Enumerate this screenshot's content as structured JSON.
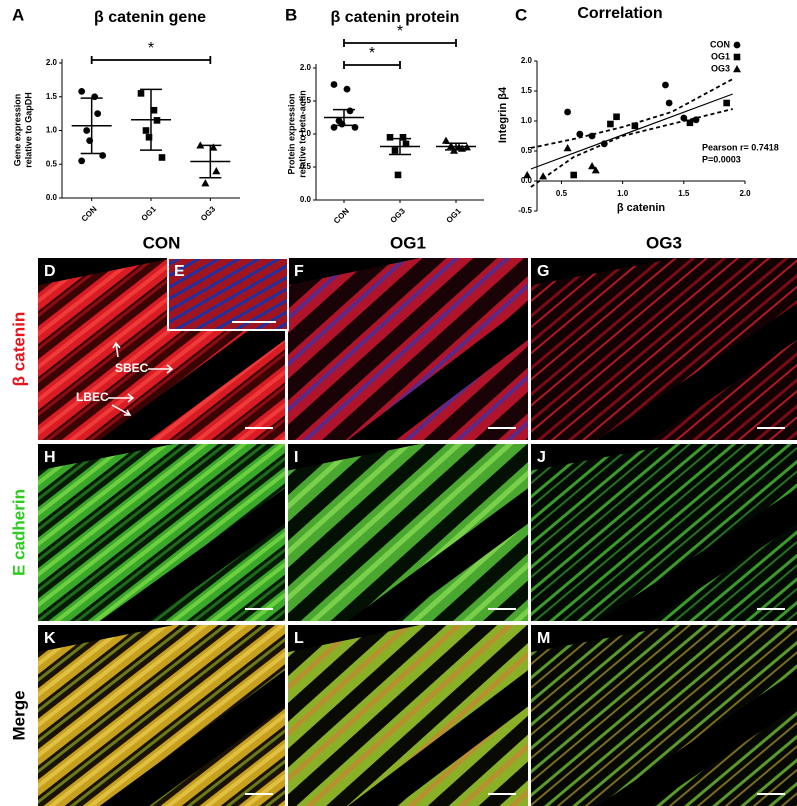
{
  "chart_data": [
    {
      "type": "dot_plot",
      "panel": "A",
      "title": "β catenin gene",
      "y_label": [
        "Gene expression",
        "relative to GapDH"
      ],
      "categories": [
        "CON",
        "OG1",
        "OG3"
      ],
      "markers": [
        "circle",
        "square",
        "triangle"
      ],
      "color": "#000000",
      "points": [
        [
          1.58,
          1.5,
          1.25,
          1.0,
          0.85,
          0.63,
          0.55
        ],
        [
          1.55,
          1.3,
          1.15,
          1.0,
          0.9,
          0.6
        ],
        [
          0.78,
          0.75,
          0.4,
          0.22
        ]
      ],
      "means": [
        1.07,
        1.16,
        0.54
      ],
      "errors": [
        0.41,
        0.45,
        0.24
      ],
      "ylim": [
        0,
        2
      ],
      "yticks": [
        {
          "value": 0,
          "label": "0.0"
        },
        0.5,
        {
          "value": 1,
          "label": "1.0"
        },
        1.5,
        {
          "value": 2,
          "label": "2.0"
        }
      ],
      "significance": [
        {
          "label": "*",
          "groups": [
            0,
            2
          ]
        }
      ]
    },
    {
      "type": "dot_plot",
      "panel": "B",
      "title": "β catenin protein",
      "y_label": [
        "Protein expression",
        "relative to beta-actin"
      ],
      "categories": [
        "CON",
        "OG3",
        "OG1"
      ],
      "markers": [
        "circle",
        "square",
        "triangle"
      ],
      "color": "#000000",
      "points": [
        [
          1.75,
          1.68,
          1.35,
          1.2,
          1.15,
          1.1,
          1.1
        ],
        [
          0.95,
          0.95,
          0.85,
          0.75,
          0.38
        ],
        [
          0.9,
          0.8,
          0.78,
          0.82,
          0.75,
          0.8
        ]
      ],
      "means": [
        1.25,
        0.81,
        0.81
      ],
      "errors": [
        0.12,
        0.12,
        0.05
      ],
      "ylim": [
        0,
        2
      ],
      "yticks": [
        {
          "value": 0,
          "label": "0.0"
        },
        0.5,
        {
          "value": 1,
          "label": "1.0"
        },
        1.5,
        {
          "value": 2,
          "label": "2.0"
        }
      ],
      "significance": [
        {
          "label": "*",
          "groups": [
            0,
            1
          ]
        },
        {
          "label": "*",
          "groups": [
            0,
            2
          ]
        }
      ]
    },
    {
      "type": "scatter",
      "panel": "C",
      "title": "Correlation",
      "x_label": "β catenin",
      "y_label": "Integrin β4",
      "series": [
        {
          "name": "CON",
          "marker": "circle",
          "color": "#000000",
          "x": [
            0.55,
            0.65,
            0.75,
            0.85,
            1.35,
            1.38,
            1.5,
            1.6
          ],
          "values": [
            1.15,
            0.78,
            0.75,
            0.62,
            1.6,
            1.3,
            1.05,
            1.02
          ]
        },
        {
          "name": "OG1",
          "marker": "square",
          "color": "#000000",
          "x": [
            0.6,
            0.9,
            0.95,
            1.1,
            1.55,
            1.85
          ],
          "values": [
            0.1,
            0.95,
            1.07,
            0.92,
            0.97,
            1.3
          ]
        },
        {
          "name": "OG3",
          "marker": "triangle",
          "color": "#000000",
          "x": [
            0.22,
            0.35,
            0.55,
            0.75,
            0.78
          ],
          "values": [
            0.1,
            0.08,
            0.55,
            0.25,
            0.18
          ]
        }
      ],
      "fit": {
        "x": [
          0.25,
          1.9
        ],
        "y": [
          0.2,
          1.45
        ]
      },
      "ci_upper": {
        "x": [
          0.25,
          0.6,
          1.0,
          1.4,
          1.9
        ],
        "y": [
          0.55,
          0.7,
          0.9,
          1.15,
          1.7
        ]
      },
      "ci_lower": {
        "x": [
          0.25,
          0.6,
          1.0,
          1.4,
          1.9
        ],
        "y": [
          -0.1,
          0.4,
          0.75,
          0.95,
          1.2
        ]
      },
      "annotations": [
        "Pearson r= 0.7418",
        "P=0.0003"
      ],
      "xlim": [
        0.3,
        2
      ],
      "xticks": [
        0.5,
        {
          "value": 1,
          "label": "1.0"
        },
        1.5,
        {
          "value": 2,
          "label": "2.0"
        }
      ],
      "ylim": [
        -0.5,
        2
      ],
      "yticks": [
        -0.5,
        {
          "value": 0,
          "label": "0.0"
        },
        0.5,
        {
          "value": 1,
          "label": "1.0"
        },
        1.5,
        {
          "value": 2,
          "label": "2.0"
        }
      ]
    }
  ],
  "image_panels": {
    "columns": [
      "CON",
      "OG1",
      "OG3"
    ],
    "rows": [
      "β catenin",
      "E cadherin",
      "Merge"
    ],
    "letters": [
      "D",
      "F",
      "G",
      "H",
      "I",
      "J",
      "K",
      "L",
      "M"
    ],
    "inset_letter": "E",
    "labels": [
      "SBEC",
      "LBEC"
    ]
  }
}
